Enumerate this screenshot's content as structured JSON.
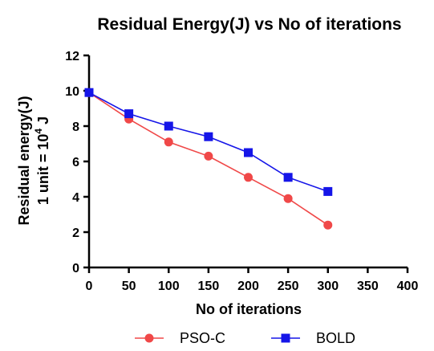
{
  "chart_data": {
    "type": "line",
    "title": "Residual Energy(J) vs No of iterations",
    "xlabel": "No of iterations",
    "ylabel_line1": "Residual energy(J)",
    "ylabel_line2_prefix": "1 unit = 10",
    "ylabel_line2_exponent": "4",
    "ylabel_line2_suffix": " J",
    "xlim": [
      0,
      400
    ],
    "ylim": [
      0,
      12
    ],
    "xticks": [
      0,
      50,
      100,
      150,
      200,
      250,
      300,
      350,
      400
    ],
    "yticks": [
      0,
      2,
      4,
      6,
      8,
      10,
      12
    ],
    "grid": false,
    "legend_position": "bottom",
    "x": [
      0,
      50,
      100,
      150,
      200,
      250,
      300
    ],
    "series": [
      {
        "name": "PSO-C",
        "values": [
          9.9,
          8.4,
          7.1,
          6.3,
          5.1,
          3.9,
          2.4
        ],
        "color": "#f04848",
        "marker": "circle"
      },
      {
        "name": "BOLD",
        "values": [
          9.9,
          8.7,
          8.0,
          7.4,
          6.5,
          5.1,
          4.3
        ],
        "color": "#1515e8",
        "marker": "square"
      }
    ]
  }
}
